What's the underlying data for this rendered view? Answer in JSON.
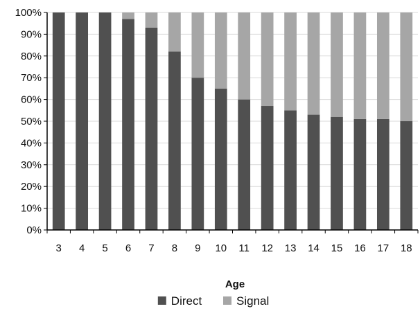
{
  "chart_data": {
    "type": "bar",
    "stacked": true,
    "percent": true,
    "categories": [
      "3",
      "4",
      "5",
      "6",
      "7",
      "8",
      "9",
      "10",
      "11",
      "12",
      "13",
      "14",
      "15",
      "16",
      "17",
      "18"
    ],
    "series": [
      {
        "name": "Direct",
        "color": "#505050",
        "values": [
          100,
          100,
          100,
          97,
          93,
          82,
          70,
          65,
          60,
          57,
          55,
          53,
          52,
          51,
          51,
          50
        ]
      },
      {
        "name": "Signal",
        "color": "#a6a6a6",
        "values": [
          0,
          0,
          0,
          3,
          7,
          18,
          30,
          35,
          40,
          43,
          45,
          47,
          48,
          49,
          49,
          50
        ]
      }
    ],
    "title": "",
    "xlabel": "Age",
    "ylabel": "",
    "ylim": [
      0,
      100
    ],
    "yticks": [
      "0%",
      "10%",
      "20%",
      "30%",
      "40%",
      "50%",
      "60%",
      "70%",
      "80%",
      "90%",
      "100%"
    ],
    "grid": true,
    "legend_position": "bottom"
  }
}
